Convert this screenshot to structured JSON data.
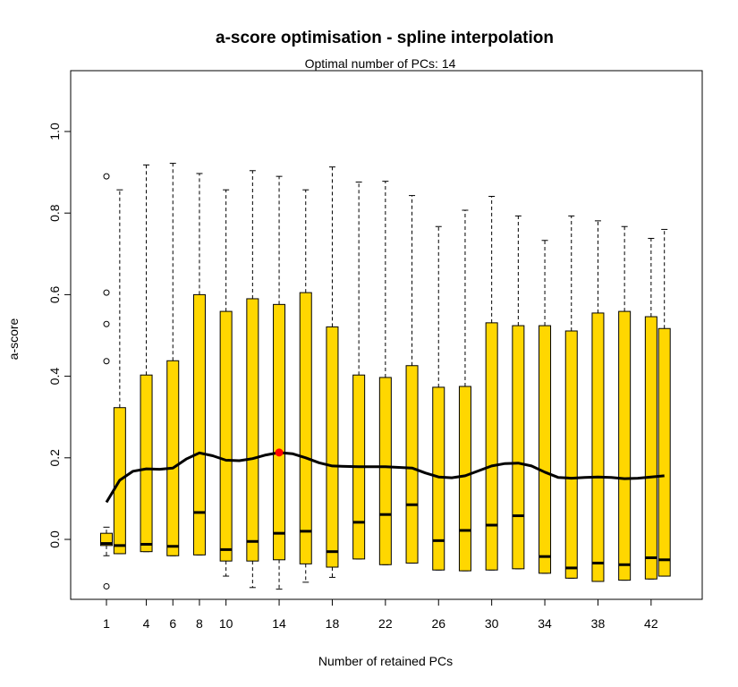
{
  "chart_data": {
    "type": "boxplot",
    "title": "a-score optimisation - spline interpolation",
    "subtitle": "Optimal number of PCs: 14",
    "xlabel": "Number of retained PCs",
    "ylabel": "a-score",
    "ylim": [
      -0.15,
      1.15
    ],
    "y_ticks": [
      0.0,
      0.2,
      0.4,
      0.6,
      0.8,
      1.0
    ],
    "y_tick_labels": [
      "0.0",
      "0.2",
      "0.4",
      "0.6",
      "0.8",
      "1.0"
    ],
    "x_ticks": [
      1,
      4,
      6,
      8,
      10,
      14,
      18,
      22,
      26,
      30,
      34,
      38,
      42
    ],
    "x_tick_labels": [
      "1",
      "4",
      "6",
      "8",
      "10",
      "14",
      "18",
      "22",
      "26",
      "30",
      "34",
      "38",
      "42"
    ],
    "box_color": "#FFD700",
    "curve_color": "#000000",
    "optimum_color": "#FF0000",
    "optimum": {
      "x": 14,
      "y": 0.213
    },
    "boxes": [
      {
        "x": 1,
        "whisker_low": -0.04,
        "q1": -0.015,
        "median": -0.01,
        "q3": 0.015,
        "whisker_high": 0.03,
        "outliers": [
          0.89,
          0.605,
          0.528,
          0.437,
          -0.115
        ]
      },
      {
        "x": 2,
        "whisker_low": -0.035,
        "q1": -0.035,
        "median": -0.015,
        "q3": 0.323,
        "whisker_high": 0.857,
        "outliers": []
      },
      {
        "x": 4,
        "whisker_low": -0.03,
        "q1": -0.03,
        "median": -0.012,
        "q3": 0.403,
        "whisker_high": 0.918,
        "outliers": []
      },
      {
        "x": 6,
        "whisker_low": -0.04,
        "q1": -0.04,
        "median": -0.017,
        "q3": 0.438,
        "whisker_high": 0.922,
        "outliers": []
      },
      {
        "x": 8,
        "whisker_low": -0.038,
        "q1": -0.038,
        "median": 0.066,
        "q3": 0.6,
        "whisker_high": 0.897,
        "outliers": []
      },
      {
        "x": 10,
        "whisker_low": -0.09,
        "q1": -0.053,
        "median": -0.025,
        "q3": 0.559,
        "whisker_high": 0.857,
        "outliers": []
      },
      {
        "x": 12,
        "whisker_low": -0.118,
        "q1": -0.053,
        "median": -0.005,
        "q3": 0.59,
        "whisker_high": 0.904,
        "outliers": []
      },
      {
        "x": 14,
        "whisker_low": -0.122,
        "q1": -0.05,
        "median": 0.015,
        "q3": 0.576,
        "whisker_high": 0.89,
        "outliers": []
      },
      {
        "x": 16,
        "whisker_low": -0.105,
        "q1": -0.06,
        "median": 0.02,
        "q3": 0.605,
        "whisker_high": 0.857,
        "outliers": []
      },
      {
        "x": 18,
        "whisker_low": -0.093,
        "q1": -0.068,
        "median": -0.03,
        "q3": 0.521,
        "whisker_high": 0.913,
        "outliers": []
      },
      {
        "x": 20,
        "whisker_low": -0.048,
        "q1": -0.048,
        "median": 0.042,
        "q3": 0.403,
        "whisker_high": 0.876,
        "outliers": []
      },
      {
        "x": 22,
        "whisker_low": -0.062,
        "q1": -0.062,
        "median": 0.061,
        "q3": 0.397,
        "whisker_high": 0.878,
        "outliers": []
      },
      {
        "x": 24,
        "whisker_low": -0.058,
        "q1": -0.058,
        "median": 0.085,
        "q3": 0.426,
        "whisker_high": 0.843,
        "outliers": []
      },
      {
        "x": 26,
        "whisker_low": -0.075,
        "q1": -0.075,
        "median": -0.003,
        "q3": 0.373,
        "whisker_high": 0.767,
        "outliers": []
      },
      {
        "x": 28,
        "whisker_low": -0.077,
        "q1": -0.077,
        "median": 0.022,
        "q3": 0.375,
        "whisker_high": 0.807,
        "outliers": []
      },
      {
        "x": 30,
        "whisker_low": -0.075,
        "q1": -0.075,
        "median": 0.035,
        "q3": 0.531,
        "whisker_high": 0.841,
        "outliers": []
      },
      {
        "x": 32,
        "whisker_low": -0.072,
        "q1": -0.072,
        "median": 0.058,
        "q3": 0.524,
        "whisker_high": 0.793,
        "outliers": []
      },
      {
        "x": 34,
        "whisker_low": -0.083,
        "q1": -0.083,
        "median": -0.042,
        "q3": 0.524,
        "whisker_high": 0.733,
        "outliers": []
      },
      {
        "x": 36,
        "whisker_low": -0.095,
        "q1": -0.095,
        "median": -0.07,
        "q3": 0.511,
        "whisker_high": 0.793,
        "outliers": []
      },
      {
        "x": 38,
        "whisker_low": -0.103,
        "q1": -0.103,
        "median": -0.058,
        "q3": 0.555,
        "whisker_high": 0.781,
        "outliers": []
      },
      {
        "x": 40,
        "whisker_low": -0.1,
        "q1": -0.1,
        "median": -0.062,
        "q3": 0.559,
        "whisker_high": 0.767,
        "outliers": []
      },
      {
        "x": 42,
        "whisker_low": -0.097,
        "q1": -0.097,
        "median": -0.045,
        "q3": 0.546,
        "whisker_high": 0.738,
        "outliers": []
      },
      {
        "x": 43,
        "whisker_low": -0.09,
        "q1": -0.09,
        "median": -0.05,
        "q3": 0.517,
        "whisker_high": 0.76,
        "outliers": []
      }
    ],
    "curve": [
      {
        "x": 1,
        "y": 0.091
      },
      {
        "x": 2,
        "y": 0.145
      },
      {
        "x": 3,
        "y": 0.167
      },
      {
        "x": 4,
        "y": 0.173
      },
      {
        "x": 5,
        "y": 0.172
      },
      {
        "x": 6,
        "y": 0.175
      },
      {
        "x": 7,
        "y": 0.197
      },
      {
        "x": 8,
        "y": 0.212
      },
      {
        "x": 9,
        "y": 0.205
      },
      {
        "x": 10,
        "y": 0.194
      },
      {
        "x": 11,
        "y": 0.193
      },
      {
        "x": 12,
        "y": 0.198
      },
      {
        "x": 13,
        "y": 0.207
      },
      {
        "x": 14,
        "y": 0.213
      },
      {
        "x": 15,
        "y": 0.21
      },
      {
        "x": 16,
        "y": 0.2
      },
      {
        "x": 17,
        "y": 0.188
      },
      {
        "x": 18,
        "y": 0.18
      },
      {
        "x": 20,
        "y": 0.178
      },
      {
        "x": 22,
        "y": 0.178
      },
      {
        "x": 24,
        "y": 0.175
      },
      {
        "x": 25,
        "y": 0.163
      },
      {
        "x": 26,
        "y": 0.153
      },
      {
        "x": 27,
        "y": 0.151
      },
      {
        "x": 28,
        "y": 0.156
      },
      {
        "x": 29,
        "y": 0.168
      },
      {
        "x": 30,
        "y": 0.18
      },
      {
        "x": 31,
        "y": 0.186
      },
      {
        "x": 32,
        "y": 0.187
      },
      {
        "x": 33,
        "y": 0.18
      },
      {
        "x": 34,
        "y": 0.165
      },
      {
        "x": 35,
        "y": 0.152
      },
      {
        "x": 36,
        "y": 0.15
      },
      {
        "x": 37,
        "y": 0.152
      },
      {
        "x": 38,
        "y": 0.153
      },
      {
        "x": 39,
        "y": 0.152
      },
      {
        "x": 40,
        "y": 0.149
      },
      {
        "x": 41,
        "y": 0.15
      },
      {
        "x": 42,
        "y": 0.153
      },
      {
        "x": 43,
        "y": 0.156
      }
    ]
  }
}
